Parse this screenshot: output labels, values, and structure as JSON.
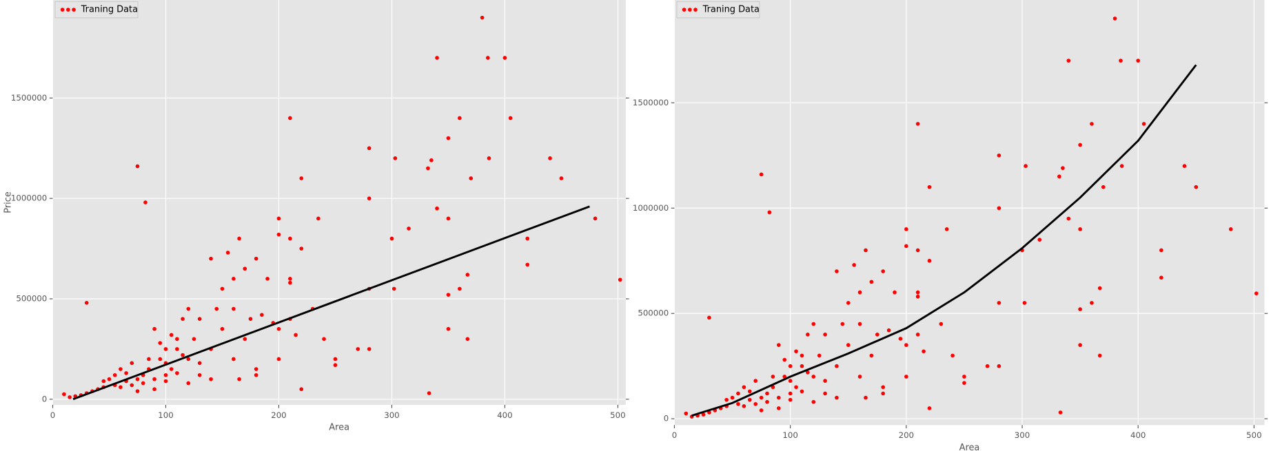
{
  "chart_data": [
    {
      "type": "scatter",
      "xlabel": "Area",
      "ylabel": "Price",
      "xlim": [
        0,
        507
      ],
      "ylim": [
        -28000,
        1988000
      ],
      "xticks": [
        0,
        100,
        200,
        300,
        400,
        500
      ],
      "yticks": [
        0,
        500000,
        1000000,
        1500000
      ],
      "grid": true,
      "legend": "upper left",
      "series": [
        {
          "name": "Traning Data",
          "color": "#ff0000",
          "x": [
            380,
            340,
            385,
            400,
            210,
            360,
            405,
            350,
            280,
            303,
            386,
            440,
            335,
            332,
            370,
            220,
            450,
            75,
            82,
            280,
            340,
            350,
            200,
            235,
            480,
            315,
            420,
            300,
            210,
            165,
            200,
            420,
            367,
            502,
            30,
            360,
            302,
            280,
            350,
            350,
            367,
            333,
            220,
            280,
            270,
            250,
            250,
            240,
            140,
            155,
            170,
            180,
            190,
            210,
            210,
            220,
            160,
            150,
            145,
            160,
            175,
            185,
            195,
            200,
            210,
            215,
            230,
            170,
            150,
            130,
            120,
            125,
            140,
            160,
            180,
            200,
            165,
            180,
            110,
            100,
            90,
            95,
            105,
            115,
            130,
            140,
            120,
            85,
            80,
            75,
            70,
            65,
            60,
            55,
            50,
            45,
            40,
            35,
            30,
            25,
            20,
            15,
            10,
            60,
            70,
            80,
            90,
            100,
            110,
            85,
            95,
            105,
            115,
            90,
            100,
            120,
            75,
            65,
            55,
            45,
            100,
            110,
            130
          ],
          "values": [
            1900000,
            1700000,
            1700000,
            1700000,
            1400000,
            1400000,
            1400000,
            1300000,
            1250000,
            1200000,
            1200000,
            1200000,
            1190000,
            1150000,
            1100000,
            1100000,
            1100000,
            1160000,
            980000,
            1000000,
            950000,
            900000,
            900000,
            900000,
            900000,
            850000,
            800000,
            800000,
            800000,
            800000,
            820000,
            670000,
            620000,
            595000,
            480000,
            550000,
            550000,
            550000,
            520000,
            350000,
            300000,
            30000,
            50000,
            250000,
            250000,
            200000,
            170000,
            300000,
            700000,
            730000,
            650000,
            700000,
            600000,
            600000,
            580000,
            750000,
            600000,
            550000,
            450000,
            450000,
            400000,
            420000,
            380000,
            350000,
            400000,
            320000,
            450000,
            300000,
            350000,
            400000,
            450000,
            300000,
            250000,
            200000,
            150000,
            200000,
            100000,
            120000,
            300000,
            250000,
            350000,
            200000,
            150000,
            220000,
            180000,
            100000,
            80000,
            150000,
            120000,
            100000,
            180000,
            90000,
            150000,
            70000,
            100000,
            60000,
            50000,
            40000,
            30000,
            20000,
            15000,
            10000,
            25000,
            60000,
            70000,
            80000,
            100000,
            120000,
            130000,
            200000,
            280000,
            320000,
            400000,
            50000,
            90000,
            200000,
            40000,
            130000,
            120000,
            90000,
            180000,
            250000,
            120000
          ]
        }
      ],
      "fit": {
        "color": "#000000",
        "x": [
          18,
          475
        ],
        "values": [
          0,
          960000
        ]
      }
    },
    {
      "type": "scatter",
      "xlabel": "Area",
      "xlim": [
        0,
        509
      ],
      "ylim": [
        -30000,
        1988000
      ],
      "xticks": [
        0,
        100,
        200,
        300,
        400,
        500
      ],
      "yticks": [
        0,
        500000,
        1000000,
        1500000
      ],
      "grid": true,
      "legend": "upper left",
      "series": [
        {
          "name": "Traning Data",
          "color": "#ff0000",
          "x": [
            380,
            340,
            385,
            400,
            210,
            360,
            405,
            350,
            280,
            303,
            386,
            440,
            335,
            332,
            370,
            220,
            450,
            75,
            82,
            280,
            340,
            350,
            200,
            235,
            480,
            315,
            420,
            300,
            210,
            165,
            200,
            420,
            367,
            502,
            30,
            360,
            302,
            280,
            350,
            350,
            367,
            333,
            220,
            280,
            270,
            250,
            250,
            240,
            140,
            155,
            170,
            180,
            190,
            210,
            210,
            220,
            160,
            150,
            145,
            160,
            175,
            185,
            195,
            200,
            210,
            215,
            230,
            170,
            150,
            130,
            120,
            125,
            140,
            160,
            180,
            200,
            165,
            180,
            110,
            100,
            90,
            95,
            105,
            115,
            130,
            140,
            120,
            85,
            80,
            75,
            70,
            65,
            60,
            55,
            50,
            45,
            40,
            35,
            30,
            25,
            20,
            15,
            10,
            60,
            70,
            80,
            90,
            100,
            110,
            85,
            95,
            105,
            115,
            90,
            100,
            120,
            75,
            65,
            55,
            45,
            100,
            110,
            130
          ],
          "values": [
            1900000,
            1700000,
            1700000,
            1700000,
            1400000,
            1400000,
            1400000,
            1300000,
            1250000,
            1200000,
            1200000,
            1200000,
            1190000,
            1150000,
            1100000,
            1100000,
            1100000,
            1160000,
            980000,
            1000000,
            950000,
            900000,
            900000,
            900000,
            900000,
            850000,
            800000,
            800000,
            800000,
            800000,
            820000,
            670000,
            620000,
            595000,
            480000,
            550000,
            550000,
            550000,
            520000,
            350000,
            300000,
            30000,
            50000,
            250000,
            250000,
            200000,
            170000,
            300000,
            700000,
            730000,
            650000,
            700000,
            600000,
            600000,
            580000,
            750000,
            600000,
            550000,
            450000,
            450000,
            400000,
            420000,
            380000,
            350000,
            400000,
            320000,
            450000,
            300000,
            350000,
            400000,
            450000,
            300000,
            250000,
            200000,
            150000,
            200000,
            100000,
            120000,
            300000,
            250000,
            350000,
            200000,
            150000,
            220000,
            180000,
            100000,
            80000,
            150000,
            120000,
            100000,
            180000,
            90000,
            150000,
            70000,
            100000,
            60000,
            50000,
            40000,
            30000,
            20000,
            15000,
            10000,
            25000,
            60000,
            70000,
            80000,
            100000,
            120000,
            130000,
            200000,
            280000,
            320000,
            400000,
            50000,
            90000,
            200000,
            40000,
            130000,
            120000,
            90000,
            180000,
            250000,
            120000
          ]
        }
      ],
      "fit": {
        "color": "#000000",
        "x": [
          15,
          50,
          100,
          150,
          200,
          250,
          300,
          350,
          400,
          450
        ],
        "values": [
          15000,
          75000,
          200000,
          310000,
          430000,
          600000,
          810000,
          1050000,
          1320000,
          1680000
        ]
      }
    }
  ]
}
